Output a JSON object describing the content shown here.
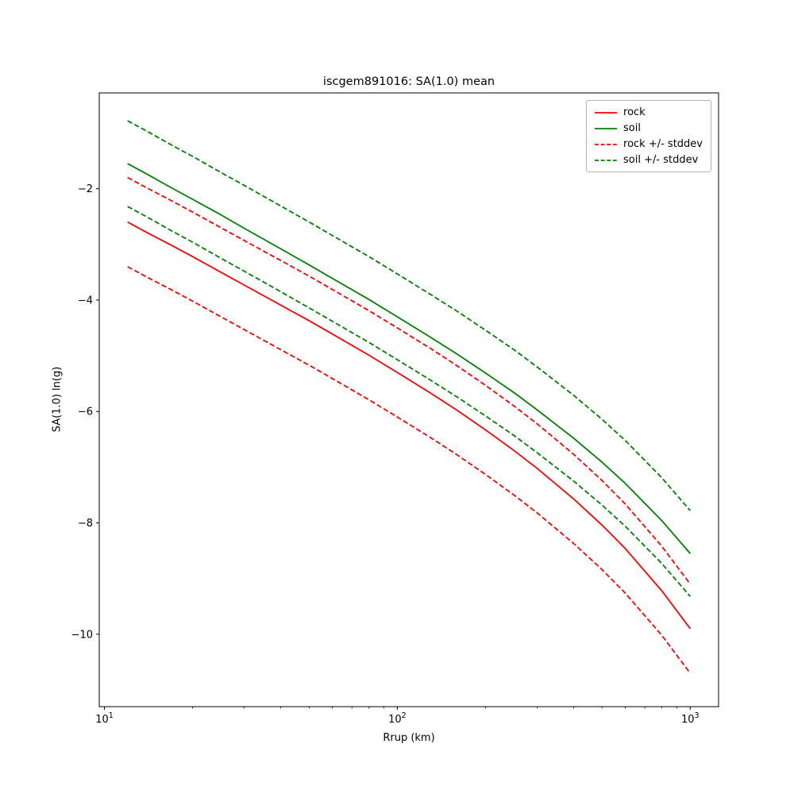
{
  "chart_data": {
    "type": "line",
    "title": "iscgem891016: SA(1.0) mean",
    "xlabel": "Rrup (km)",
    "ylabel": "SA(1.0) ln(g)",
    "x_scale": "log",
    "grid": false,
    "legend_position": "upper right",
    "xlim": [
      9.6,
      1250
    ],
    "ylim": [
      -11.3,
      -0.28
    ],
    "x_ticks": [
      {
        "value": 10,
        "mantissa": "10",
        "exponent": "1"
      },
      {
        "value": 100,
        "mantissa": "10",
        "exponent": "2"
      },
      {
        "value": 1000,
        "mantissa": "10",
        "exponent": "3"
      }
    ],
    "x_minor_ticks": [
      20,
      30,
      40,
      50,
      60,
      70,
      80,
      90,
      200,
      300,
      400,
      500,
      600,
      700,
      800,
      900
    ],
    "y_ticks": [
      {
        "value": -2,
        "label": "−2"
      },
      {
        "value": -4,
        "label": "−4"
      },
      {
        "value": -6,
        "label": "−6"
      },
      {
        "value": -8,
        "label": "−8"
      },
      {
        "value": -10,
        "label": "−10"
      }
    ],
    "x": [
      12,
      14,
      17,
      20,
      25,
      30,
      40,
      50,
      60,
      80,
      100,
      130,
      160,
      200,
      250,
      300,
      400,
      500,
      600,
      800,
      1000
    ],
    "series": [
      {
        "name": "rock",
        "color": "#ff0000",
        "dash": "solid",
        "values": [
          -2.6,
          -2.79,
          -3.02,
          -3.22,
          -3.5,
          -3.73,
          -4.09,
          -4.37,
          -4.61,
          -4.99,
          -5.3,
          -5.67,
          -5.98,
          -6.33,
          -6.7,
          -7.02,
          -7.57,
          -8.04,
          -8.46,
          -9.22,
          -9.9
        ]
      },
      {
        "name": "soil",
        "color": "#008000",
        "dash": "solid",
        "values": [
          -1.55,
          -1.74,
          -1.99,
          -2.19,
          -2.47,
          -2.71,
          -3.08,
          -3.37,
          -3.61,
          -3.99,
          -4.3,
          -4.67,
          -4.97,
          -5.31,
          -5.66,
          -5.97,
          -6.48,
          -6.91,
          -7.29,
          -7.96,
          -8.55
        ]
      },
      {
        "name": "rock_plus_stddev",
        "color": "#ff0000",
        "dash": "dashed",
        "values": [
          -1.8,
          -1.99,
          -2.22,
          -2.42,
          -2.7,
          -2.93,
          -3.29,
          -3.57,
          -3.81,
          -4.19,
          -4.5,
          -4.87,
          -5.18,
          -5.53,
          -5.9,
          -6.22,
          -6.77,
          -7.24,
          -7.66,
          -8.42,
          -9.1
        ]
      },
      {
        "name": "rock_minus_stddev",
        "color": "#ff0000",
        "dash": "dashed",
        "values": [
          -3.4,
          -3.59,
          -3.82,
          -4.02,
          -4.3,
          -4.53,
          -4.89,
          -5.17,
          -5.41,
          -5.79,
          -6.1,
          -6.47,
          -6.78,
          -7.13,
          -7.5,
          -7.82,
          -8.37,
          -8.84,
          -9.26,
          -10.02,
          -10.7
        ]
      },
      {
        "name": "soil_plus_stddev",
        "color": "#008000",
        "dash": "dashed",
        "values": [
          -0.78,
          -0.97,
          -1.22,
          -1.42,
          -1.71,
          -1.94,
          -2.31,
          -2.6,
          -2.84,
          -3.22,
          -3.53,
          -3.9,
          -4.2,
          -4.54,
          -4.89,
          -5.2,
          -5.71,
          -6.14,
          -6.52,
          -7.19,
          -7.78
        ]
      },
      {
        "name": "soil_minus_stddev",
        "color": "#008000",
        "dash": "dashed",
        "values": [
          -2.32,
          -2.51,
          -2.76,
          -2.96,
          -3.25,
          -3.48,
          -3.85,
          -4.14,
          -4.38,
          -4.76,
          -5.07,
          -5.44,
          -5.74,
          -6.08,
          -6.43,
          -6.74,
          -7.25,
          -7.68,
          -8.06,
          -8.73,
          -9.32
        ]
      }
    ],
    "legend": [
      {
        "label": "rock",
        "color": "#ff0000",
        "dash": "solid"
      },
      {
        "label": "soil",
        "color": "#008000",
        "dash": "solid"
      },
      {
        "label": "rock +/- stddev",
        "color": "#ff0000",
        "dash": "dashed"
      },
      {
        "label": "soil +/- stddev",
        "color": "#008000",
        "dash": "dashed"
      }
    ]
  }
}
